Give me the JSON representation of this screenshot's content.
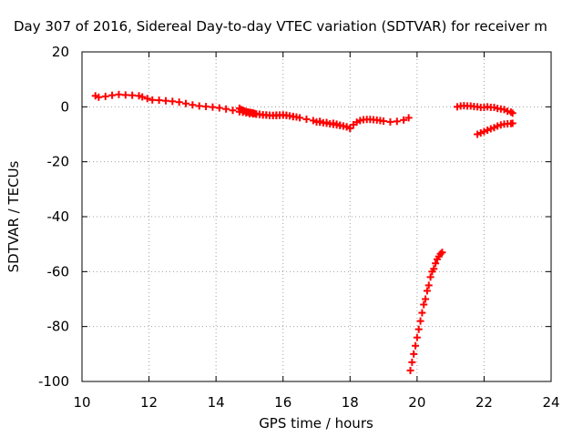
{
  "chart_data": {
    "type": "scatter",
    "title": "Day 307 of 2016, Sidereal Day-to-day VTEC variation (SDTVAR) for receiver m",
    "xlabel": "GPS time / hours",
    "ylabel": "SDTVAR / TECUs",
    "xlim": [
      10,
      24
    ],
    "ylim": [
      -100,
      20
    ],
    "x_ticks": [
      10,
      12,
      14,
      16,
      18,
      20,
      22,
      24
    ],
    "y_ticks": [
      -100,
      -80,
      -60,
      -40,
      -20,
      0,
      20
    ],
    "grid": true,
    "legend": "none",
    "marker": "plus",
    "color": "#ff0000",
    "series": [
      {
        "segments": [
          {
            "x": [
              10.4,
              10.5,
              10.7,
              10.9,
              11.1,
              11.3,
              11.5,
              11.7,
              11.8,
              11.95,
              12.1,
              12.3,
              12.5,
              12.7,
              12.9,
              13.1,
              13.3,
              13.5,
              13.7,
              13.9,
              14.1,
              14.3,
              14.5,
              14.7,
              14.8,
              14.9,
              15.0,
              15.1,
              15.2,
              15.3,
              15.4,
              15.5,
              15.6,
              15.7,
              15.8,
              15.9,
              16.0,
              16.1,
              16.3,
              16.5,
              16.7,
              16.9,
              17.1,
              17.3,
              17.5,
              17.6,
              17.7,
              17.8,
              17.9,
              18.0,
              18.1,
              18.2,
              18.3,
              18.4,
              18.5,
              18.6,
              18.7,
              18.8,
              18.9,
              19.0,
              19.2,
              19.4,
              19.6,
              19.75
            ],
            "y": [
              4,
              3.5,
              3.8,
              4.2,
              4.5,
              4.3,
              4.2,
              4.0,
              3.6,
              3.0,
              2.5,
              2.4,
              2.2,
              2.0,
              1.7,
              1.2,
              0.7,
              0.3,
              0.1,
              -0.1,
              -0.4,
              -0.8,
              -1.3,
              -1.8,
              -2.0,
              -2.2,
              -2.5,
              -2.6,
              -2.7,
              -2.8,
              -3.0,
              -3.0,
              -3.1,
              -3.1,
              -3.0,
              -3.0,
              -3.0,
              -3.1,
              -3.6,
              -4.0,
              -4.5,
              -5.0,
              -5.3,
              -5.7,
              -6.0,
              -6.3,
              -6.7,
              -7.0,
              -7.3,
              -7.8,
              -6.5,
              -5.6,
              -5.0,
              -4.7,
              -4.6,
              -4.6,
              -4.7,
              -4.8,
              -5.0,
              -5.2,
              -5.5,
              -5.3,
              -4.8,
              -4.0
            ]
          },
          {
            "x": [
              14.7,
              14.75,
              14.8,
              14.85,
              14.9,
              14.95,
              15.0,
              15.05,
              15.1,
              15.15,
              15.2,
              15.3,
              15.4,
              15.5,
              15.6,
              15.7,
              15.8,
              15.9,
              16.0,
              16.1,
              16.2,
              16.3,
              16.4
            ],
            "y": [
              -0.5,
              -1.0,
              -1.2,
              -1.5,
              -1.7,
              -1.9,
              -2.0,
              -2.1,
              -2.2,
              -2.4,
              -2.6,
              -2.7,
              -2.9,
              -3.0,
              -3.1,
              -3.2,
              -3.2,
              -3.1,
              -3.0,
              -3.1,
              -3.3,
              -3.5,
              -3.7
            ]
          },
          {
            "x": [
              17.0,
              17.1,
              17.2,
              17.3,
              17.4,
              17.5,
              17.6,
              17.7,
              17.8,
              17.9,
              18.0
            ],
            "y": [
              -5.5,
              -5.6,
              -5.8,
              -6.0,
              -6.2,
              -6.4,
              -6.6,
              -6.8,
              -7.0,
              -7.3,
              -7.8
            ]
          },
          {
            "x": [
              19.8,
              19.85,
              19.9,
              19.95,
              20.0,
              20.05,
              20.1,
              20.15,
              20.2,
              20.25,
              20.3,
              20.35,
              20.4,
              20.45,
              20.5,
              20.55,
              20.6,
              20.65,
              20.7,
              20.75
            ],
            "y": [
              -96,
              -93,
              -90,
              -87,
              -84,
              -81,
              -78,
              -75,
              -72,
              -70,
              -67,
              -65,
              -62,
              -60,
              -59,
              -57,
              -55.5,
              -54.5,
              -53.5,
              -53
            ]
          },
          {
            "x": [
              21.2,
              21.3,
              21.4,
              21.5,
              21.6,
              21.7,
              21.8,
              21.9,
              22.0,
              22.1,
              22.2,
              22.3,
              22.4,
              22.5,
              22.6,
              22.7,
              22.8,
              22.85
            ],
            "y": [
              0,
              0.3,
              0.4,
              0.3,
              0.3,
              0.1,
              0.0,
              -0.2,
              -0.2,
              0.0,
              -0.2,
              -0.2,
              -0.6,
              -0.8,
              -1.0,
              -1.6,
              -1.9,
              -2.3
            ]
          },
          {
            "x": [
              21.8,
              21.9,
              22.0,
              22.1,
              22.2,
              22.3,
              22.4,
              22.5,
              22.6,
              22.7,
              22.8,
              22.85
            ],
            "y": [
              -10,
              -9.5,
              -9.0,
              -8.5,
              -8.0,
              -7.6,
              -7.0,
              -6.6,
              -6.3,
              -6.2,
              -6.1,
              -6.0
            ]
          }
        ]
      }
    ]
  }
}
